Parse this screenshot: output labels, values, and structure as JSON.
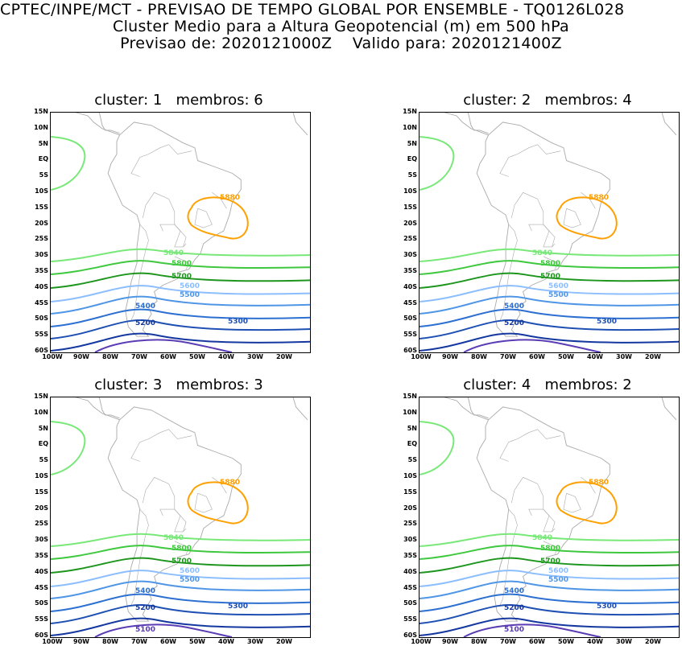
{
  "header": {
    "line1": "CPTEC/INPE/MCT - PREVISAO DE TEMPO GLOBAL POR ENSEMBLE - TQ0126L028",
    "line2": "Cluster Medio para a Altura Geopotencial (m) em 500 hPa",
    "line3": "Previsao de: 2020121000Z    Valido para: 2020121400Z"
  },
  "axes": {
    "lat_labels": [
      "15N",
      "10N",
      "5N",
      "EQ",
      "5S",
      "10S",
      "15S",
      "20S",
      "25S",
      "30S",
      "35S",
      "40S",
      "45S",
      "50S",
      "55S",
      "60S"
    ],
    "lon_labels": [
      "100W",
      "90W",
      "80W",
      "70W",
      "60W",
      "50W",
      "40W",
      "30W",
      "20W"
    ]
  },
  "colors": {
    "c5880": "#ffa000",
    "c5840": "#78e878",
    "c5800": "#3ec83e",
    "c5700": "#1e961e",
    "c5600": "#8cbeff",
    "c5500": "#5096e6",
    "c5400": "#2d70d2",
    "c5300": "#1e50b4",
    "c5200": "#1438a0",
    "c5100": "#5a3cb4",
    "coast": "#aaaaaa"
  },
  "panels": [
    {
      "title": "cluster: 1   membros: 6",
      "labels": [
        "5880",
        "5840",
        "5800",
        "5700",
        "5600",
        "5500",
        "5400",
        "5300",
        "5200"
      ]
    },
    {
      "title": "cluster: 2   membros: 4",
      "labels": [
        "5880",
        "5840",
        "5800",
        "5700",
        "5600",
        "5500",
        "5400",
        "5300",
        "5200"
      ]
    },
    {
      "title": "cluster: 3   membros: 3",
      "labels": [
        "5880",
        "5840",
        "5800",
        "5700",
        "5600",
        "5500",
        "5400",
        "5300",
        "5200",
        "5100"
      ]
    },
    {
      "title": "cluster: 4   membros: 2",
      "labels": [
        "5880",
        "5840",
        "5800",
        "5700",
        "5600",
        "5500",
        "5400",
        "5300",
        "5200",
        "5100"
      ]
    }
  ]
}
